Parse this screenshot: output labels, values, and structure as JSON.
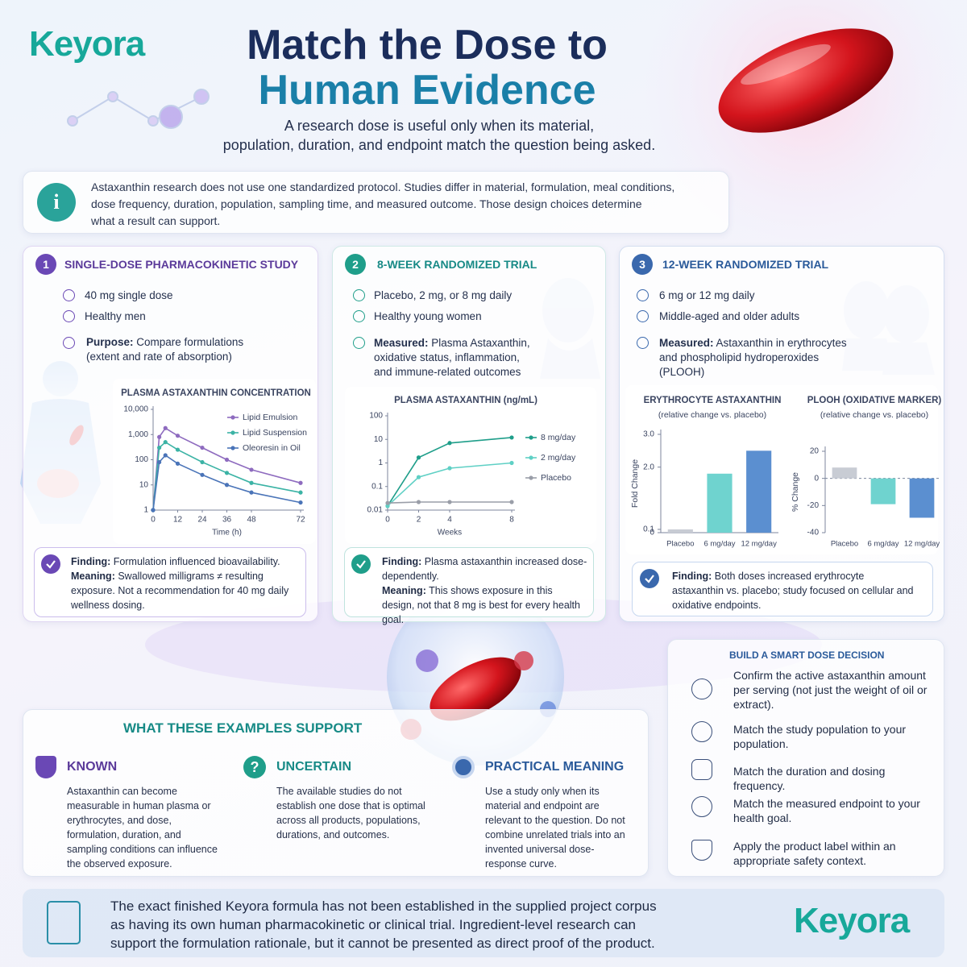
{
  "header": {
    "logo": "Keyora",
    "title_lines": [
      "Match the Dose to",
      "Human Evidence"
    ],
    "subtitle_lines": [
      "A research dose is useful only when its material,",
      "population, duration, and endpoint match the question being asked."
    ]
  },
  "intro": {
    "icon": "i",
    "lines": [
      "Astaxanthin research does not use one standardized protocol. Studies differ in material, formulation, meal conditions,",
      "dose frequency, duration, population, sampling time, and measured outcome. Those design choices determine",
      "what a result can support."
    ]
  },
  "studies": [
    {
      "number": "1",
      "title": "SINGLE-DOSE PHARMACOKINETIC STUDY",
      "details": [
        "40 mg single dose",
        "Healthy men"
      ],
      "note_label": "Purpose:",
      "note": "Compare formulations",
      "note_extra": "(extent and rate of absorption)",
      "finding": [
        {
          "label": "Finding:",
          "text": "Formulation influenced bioavailability."
        },
        {
          "label": "Meaning:",
          "text": "Swallowed milligrams ≠ resulting exposure. Not a recommendation for 40 mg daily wellness dosing."
        }
      ]
    },
    {
      "number": "2",
      "title": "8-WEEK RANDOMIZED TRIAL",
      "details": [
        "Placebo, 2 mg, or 8 mg daily",
        "Healthy young women"
      ],
      "note_label": "Measured:",
      "note": "Plasma Astaxanthin, oxidative status, inflammation, and immune-related outcomes",
      "finding": [
        {
          "label": "Finding:",
          "text": "Plasma astaxanthin increased dose-dependently."
        },
        {
          "label": "Meaning:",
          "text": "This shows exposure in this design, not that 8 mg is best for every health goal."
        }
      ]
    },
    {
      "number": "3",
      "title": "12-WEEK RANDOMIZED TRIAL",
      "details": [
        "6 mg or 12 mg daily",
        "Middle-aged and older adults"
      ],
      "note_label": "Measured:",
      "note": "Astaxanthin in erythrocytes and phospholipid hydroperoxides (PLOOH)",
      "finding": [
        {
          "label": "Finding:",
          "text": "Both doses increased erythrocyte astaxanthin vs. placebo; study focused on cellular and oxidative endpoints."
        }
      ]
    }
  ],
  "chart_data": [
    {
      "type": "line",
      "title": "PLASMA ASTAXANTHIN CONCENTRATION",
      "x_label": "Time (h)",
      "log_scale": true,
      "x": [
        0,
        3,
        6,
        12,
        24,
        36,
        48,
        72
      ],
      "xlim": [
        0,
        72
      ],
      "xticks": [
        0,
        12,
        24,
        36,
        48,
        72
      ],
      "ylim": [
        1,
        10000
      ],
      "yticks": [
        1,
        10,
        100,
        {
          "value": 1000,
          "label": "1,000"
        },
        {
          "value": 10000,
          "label": "10,000"
        }
      ],
      "series": [
        {
          "name": "Lipid Emulsion",
          "color": "#8e6bbf",
          "values": [
            1,
            800,
            1800,
            900,
            300,
            100,
            40,
            12
          ]
        },
        {
          "name": "Lipid Suspension",
          "color": "#3bb3a5",
          "values": [
            1,
            300,
            500,
            250,
            80,
            30,
            12,
            5
          ]
        },
        {
          "name": "Oleoresin in Oil",
          "color": "#4a74b8",
          "values": [
            1,
            80,
            150,
            70,
            25,
            10,
            5,
            2
          ]
        }
      ]
    },
    {
      "type": "line",
      "title": "PLASMA ASTAXANTHIN (ng/mL)",
      "x_label": "Weeks",
      "log_scale": true,
      "x": [
        0,
        2,
        4,
        8
      ],
      "xlim": [
        0,
        8
      ],
      "xticks": [
        0,
        2,
        4,
        8
      ],
      "ylim": [
        0.01,
        100
      ],
      "yticks": [
        0.01,
        0.1,
        1,
        10,
        100
      ],
      "series": [
        {
          "name": "8 mg/day",
          "color": "#1f9e8a",
          "values": [
            0.015,
            1.7,
            7,
            12
          ]
        },
        {
          "name": "2 mg/day",
          "color": "#5fd0c5",
          "values": [
            0.015,
            0.25,
            0.6,
            1
          ]
        },
        {
          "name": "Placebo",
          "color": "#9a9ea8",
          "values": [
            0.02,
            0.022,
            0.022,
            0.022
          ]
        }
      ]
    },
    {
      "type": "bar",
      "title": "ERYTHROCYTE ASTAXANTHIN",
      "subtitle": "(relative change vs. placebo)",
      "y_label": "Fold Change",
      "categories": [
        "Placebo",
        "6 mg/day",
        "12 mg/day"
      ],
      "values": [
        0.1,
        1.8,
        2.5
      ],
      "colors": [
        "#c8ccd4",
        "#6fd3cf",
        "#5b8fd0"
      ],
      "ylim": [
        0,
        3
      ],
      "yticks": [
        0,
        0.1,
        {
          "value": 2,
          "label": "2.0"
        },
        {
          "value": 3,
          "label": "3.0"
        }
      ]
    },
    {
      "type": "bar",
      "title": "PLOOH (OXIDATIVE MARKER)",
      "subtitle": "(relative change vs. placebo)",
      "y_label": "% Change",
      "categories": [
        "Placebo",
        "6 mg/day",
        "12 mg/day"
      ],
      "values": [
        8,
        -19,
        -29
      ],
      "colors": [
        "#c8ccd4",
        "#6fd3cf",
        "#5b8fd0"
      ],
      "ylim": [
        -40,
        20
      ],
      "yticks": [
        20,
        0,
        -20,
        -40
      ]
    }
  ],
  "support": {
    "title": "WHAT THESE EXAMPLES SUPPORT",
    "columns": [
      {
        "heading": "KNOWN",
        "text": "Astaxanthin can become measurable in human plasma or erythrocytes, and dose, formulation, duration, and sampling conditions can influence the observed exposure."
      },
      {
        "icon": "?",
        "heading": "UNCERTAIN",
        "text": "The available studies do not establish one dose that is optimal across all products, populations, durations, and outcomes."
      },
      {
        "heading": "PRACTICAL MEANING",
        "text": "Use a study only when its material and endpoint are relevant to the question. Do not combine unrelated trials into an invented universal dose-response curve."
      }
    ]
  },
  "decision": {
    "title": "BUILD A SMART DOSE DECISION",
    "items": [
      "Confirm the active astaxanthin amount per serving (not just the weight of oil or extract).",
      "Match the study population to your population.",
      "Match the duration and dosing frequency.",
      "Match the measured endpoint to your health goal.",
      "Apply the product label within an appropriate safety context."
    ]
  },
  "footer": {
    "lines": [
      "The exact finished Keyora formula has not been established in the supplied project corpus",
      "as having its own human pharmacokinetic or clinical trial. Ingredient-level research can",
      "support the formulation rationale, but it cannot be presented as direct proof of the product."
    ],
    "logo": "Keyora"
  }
}
